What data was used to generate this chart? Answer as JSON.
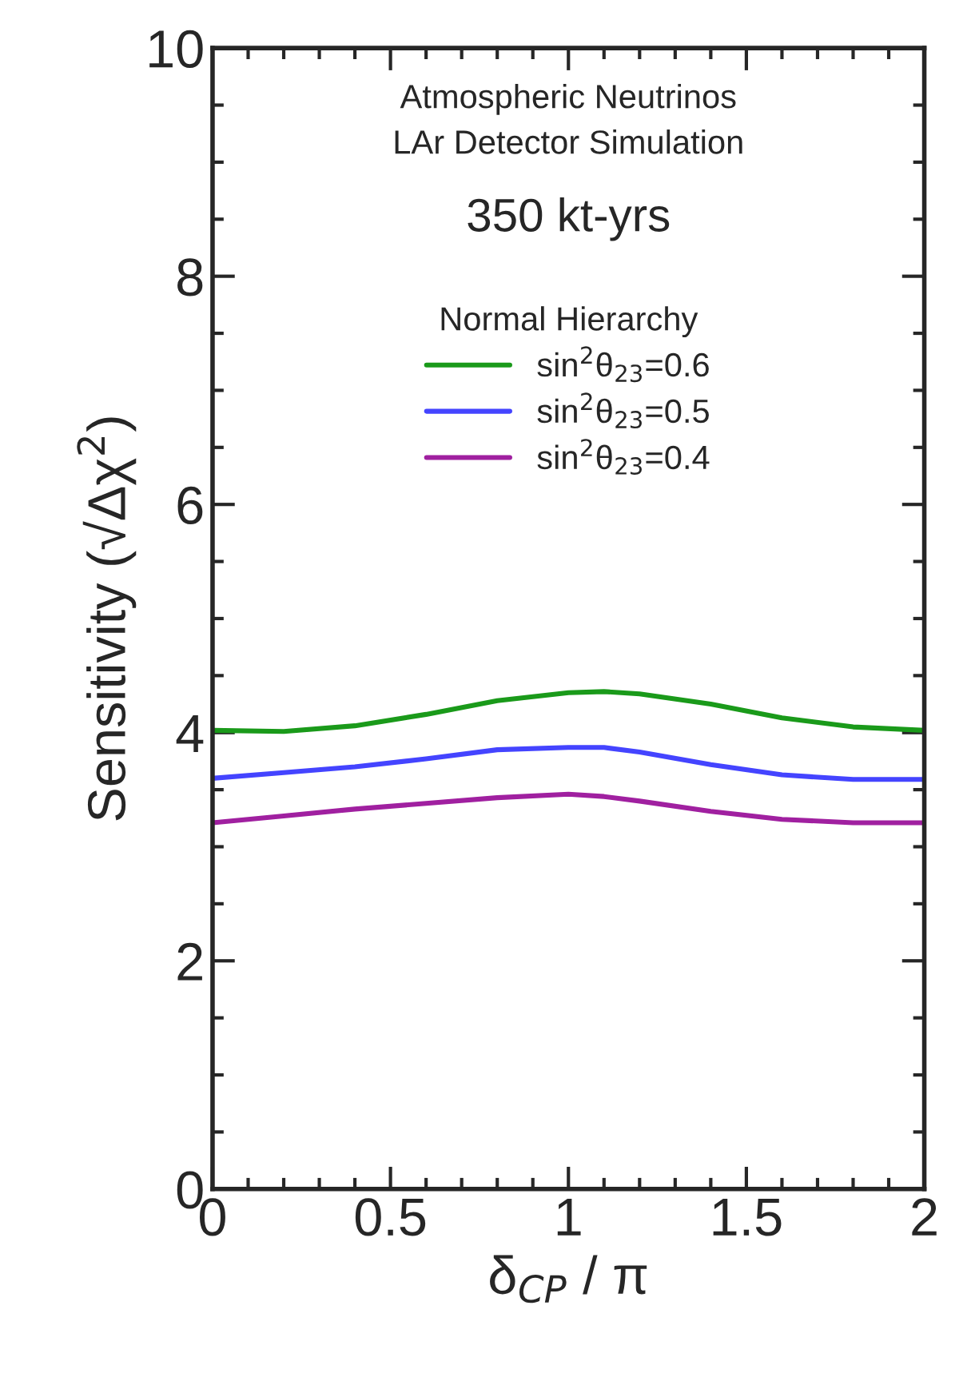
{
  "chart_data": {
    "type": "line",
    "xlabel": "δ$_{CP}$ / π",
    "ylabel": "Sensitivity (√Δχ$^{2}$)",
    "annotations": [
      "Atmospheric Neutrinos",
      "LAr Detector Simulation",
      "350 kt-yrs"
    ],
    "legend_title": "Normal Hierarchy",
    "legend": "top",
    "x": [
      0,
      0.2,
      0.4,
      0.6,
      0.8,
      1.0,
      1.1,
      1.2,
      1.4,
      1.6,
      1.8,
      2.0
    ],
    "series": [
      {
        "name": "sin$^{2}$θ$_{23}$=0.6",
        "color": "#1a9a1a",
        "values": [
          4.02,
          4.01,
          4.06,
          4.16,
          4.28,
          4.35,
          4.36,
          4.34,
          4.25,
          4.13,
          4.05,
          4.02
        ]
      },
      {
        "name": "sin$^{2}$θ$_{23}$=0.5",
        "color": "#4444ff",
        "values": [
          3.6,
          3.65,
          3.7,
          3.77,
          3.85,
          3.87,
          3.87,
          3.83,
          3.72,
          3.63,
          3.59,
          3.59
        ]
      },
      {
        "name": "sin$^{2}$θ$_{23}$=0.4",
        "color": "#a020a0",
        "values": [
          3.21,
          3.27,
          3.33,
          3.38,
          3.43,
          3.46,
          3.44,
          3.4,
          3.31,
          3.24,
          3.21,
          3.21
        ]
      }
    ],
    "xlim": [
      0,
      2
    ],
    "xticks": [
      0,
      0.5,
      1,
      1.5,
      2
    ],
    "ylim": [
      0,
      10
    ],
    "yticks": [
      0,
      2,
      4,
      6,
      8,
      10
    ],
    "grid": false,
    "line_style": "solid",
    "marker": "none"
  }
}
